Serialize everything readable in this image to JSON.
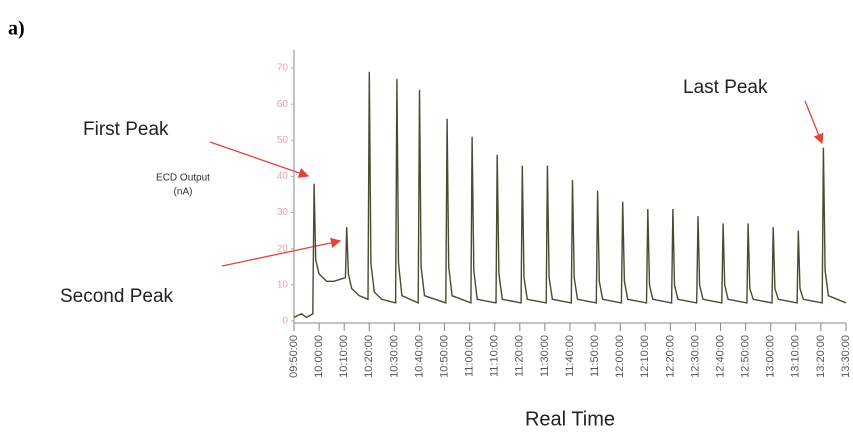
{
  "panel_label": "a)",
  "chart_data": {
    "type": "line",
    "xlabel": "Real Time",
    "ylabel": [
      "ECD Output",
      "(nA)"
    ],
    "annotations": [
      "First Peak",
      "Second Peak",
      "Last Peak"
    ],
    "xlim": [
      "09:50:00",
      "13:30:00"
    ],
    "xticks": [
      "09:50:00",
      "10:00:00",
      "10:10:00",
      "10:20:00",
      "10:30:00",
      "10:40:00",
      "10:50:00",
      "11:00:00",
      "11:10:00",
      "11:20:00",
      "11:30:00",
      "11:40:00",
      "11:50:00",
      "12:00:00",
      "12:10:00",
      "12:20:00",
      "12:30:00",
      "12:40:00",
      "12:50:00",
      "13:00:00",
      "13:10:00",
      "13:20:00",
      "13:30:00"
    ],
    "ylim": [
      0,
      75
    ],
    "yticks": [
      0,
      10,
      20,
      30,
      40,
      50,
      60,
      70
    ],
    "series": [
      {
        "color": "#4a4a2e",
        "x": [
          "09:50:00",
          "09:53:00",
          "09:55:00",
          "09:57:30",
          "09:58:00",
          "09:58:40",
          "10:00:00",
          "10:03:00",
          "10:06:00",
          "10:10:30",
          "10:11:00",
          "10:11:40",
          "10:13:00",
          "10:16:00",
          "10:19:30",
          "10:20:00",
          "10:20:40",
          "10:22:00",
          "10:25:00",
          "10:30:30",
          "10:31:00",
          "10:31:40",
          "10:33:00",
          "10:39:30",
          "10:40:00",
          "10:40:40",
          "10:42:00",
          "10:50:30",
          "10:51:00",
          "10:51:40",
          "10:53:00",
          "11:00:30",
          "11:01:00",
          "11:01:40",
          "11:03:00",
          "11:10:30",
          "11:11:00",
          "11:11:40",
          "11:13:00",
          "11:20:30",
          "11:21:00",
          "11:21:40",
          "11:23:00",
          "11:30:30",
          "11:31:00",
          "11:31:40",
          "11:33:00",
          "11:40:30",
          "11:41:00",
          "11:41:40",
          "11:43:00",
          "11:50:30",
          "11:51:00",
          "11:51:40",
          "11:53:00",
          "12:00:30",
          "12:01:00",
          "12:01:40",
          "12:03:00",
          "12:10:30",
          "12:11:00",
          "12:11:40",
          "12:13:00",
          "12:20:30",
          "12:21:00",
          "12:21:40",
          "12:23:00",
          "12:30:30",
          "12:31:00",
          "12:31:40",
          "12:33:00",
          "12:40:30",
          "12:41:00",
          "12:41:40",
          "12:43:00",
          "12:50:30",
          "12:51:00",
          "12:51:40",
          "12:53:00",
          "13:00:30",
          "13:01:00",
          "13:01:40",
          "13:03:00",
          "13:10:30",
          "13:11:00",
          "13:11:40",
          "13:13:00",
          "13:20:30",
          "13:21:00",
          "13:21:40",
          "13:23:00",
          "13:30:00"
        ],
        "values": [
          1,
          2,
          1,
          2,
          38,
          17,
          13,
          11,
          11,
          12,
          26,
          13,
          9,
          7,
          6,
          69,
          16,
          8,
          6,
          5,
          67,
          16,
          7,
          5,
          64,
          15,
          7,
          5,
          56,
          15,
          7,
          5,
          51,
          14,
          6,
          5,
          46,
          13,
          6,
          5,
          43,
          12,
          6,
          5,
          43,
          12,
          6,
          5,
          39,
          12,
          6,
          5,
          36,
          11,
          6,
          5,
          33,
          11,
          6,
          5,
          31,
          10,
          6,
          5,
          31,
          10,
          6,
          5,
          29,
          10,
          6,
          5,
          27,
          10,
          6,
          5,
          27,
          9,
          6,
          5,
          26,
          9,
          6,
          5,
          25,
          9,
          6,
          5,
          48,
          14,
          7,
          5
        ]
      }
    ]
  }
}
